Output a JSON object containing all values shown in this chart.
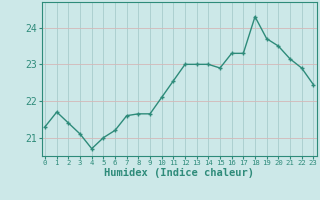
{
  "xlabel": "Humidex (Indice chaleur)",
  "x": [
    0,
    1,
    2,
    3,
    4,
    5,
    6,
    7,
    8,
    9,
    10,
    11,
    12,
    13,
    14,
    15,
    16,
    17,
    18,
    19,
    20,
    21,
    22,
    23
  ],
  "y": [
    21.3,
    21.7,
    21.4,
    21.1,
    20.7,
    21.0,
    21.2,
    21.6,
    21.65,
    21.65,
    22.1,
    22.55,
    23.0,
    23.0,
    23.0,
    22.9,
    23.3,
    23.3,
    24.3,
    23.7,
    23.5,
    23.15,
    22.9,
    22.45
  ],
  "line_color": "#2e8b7a",
  "marker": "+",
  "marker_color": "#2e8b7a",
  "bg_color": "#cce8e8",
  "grid_h_color": "#d4b8b8",
  "grid_v_color": "#a8cccc",
  "spine_color": "#2e8b7a",
  "ylim": [
    20.5,
    24.7
  ],
  "yticks": [
    21,
    22,
    23,
    24
  ],
  "xlim": [
    -0.3,
    23.3
  ],
  "xticks": [
    0,
    1,
    2,
    3,
    4,
    5,
    6,
    7,
    8,
    9,
    10,
    11,
    12,
    13,
    14,
    15,
    16,
    17,
    18,
    19,
    20,
    21,
    22,
    23
  ],
  "xlabel_fontsize": 7.5,
  "ytick_fontsize": 7,
  "xtick_fontsize": 5.2,
  "linewidth": 1.0,
  "markersize": 3.5,
  "tick_color": "#2e8b7a",
  "label_color": "#2e8b7a"
}
